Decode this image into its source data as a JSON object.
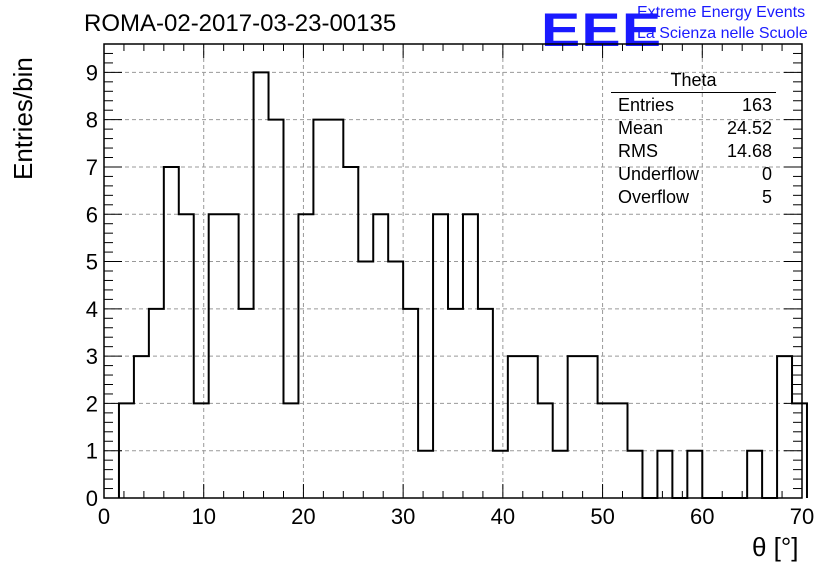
{
  "title": "ROMA-02-2017-03-23-00135",
  "logo": {
    "mark": "EEE",
    "line1": "Extreme Energy Events",
    "line2": "La Scienza nelle Scuole"
  },
  "stats": {
    "name": "Theta",
    "rows": [
      {
        "label": "Entries",
        "value": "163"
      },
      {
        "label": "Mean",
        "value": "24.52"
      },
      {
        "label": "RMS",
        "value": "14.68"
      },
      {
        "label": "Underflow",
        "value": "0"
      },
      {
        "label": "Overflow",
        "value": "5"
      }
    ]
  },
  "colors": {
    "line": "#000000",
    "grid": "#999999",
    "logo": "#1a1aff"
  },
  "chart_data": {
    "type": "bar",
    "histogram": true,
    "title": "ROMA-02-2017-03-23-00135",
    "xlabel": "θ [°]",
    "ylabel": "Entries/bin",
    "xlim": [
      0,
      70
    ],
    "ylim": [
      0,
      9.6
    ],
    "xticks": [
      0,
      10,
      20,
      30,
      40,
      50,
      60,
      70
    ],
    "yticks": [
      0,
      1,
      2,
      3,
      4,
      5,
      6,
      7,
      8,
      9
    ],
    "grid": true,
    "bin_width": 1.5,
    "bin_start": 1.5,
    "values": [
      2,
      3,
      4,
      7,
      6,
      2,
      6,
      6,
      4,
      9,
      8,
      2,
      6,
      8,
      8,
      7,
      5,
      6,
      5,
      4,
      1,
      6,
      4,
      6,
      4,
      1,
      3,
      3,
      2,
      1,
      3,
      3,
      2,
      2,
      1,
      0,
      1,
      0,
      1,
      0,
      0,
      0,
      1,
      0,
      3,
      2
    ]
  }
}
